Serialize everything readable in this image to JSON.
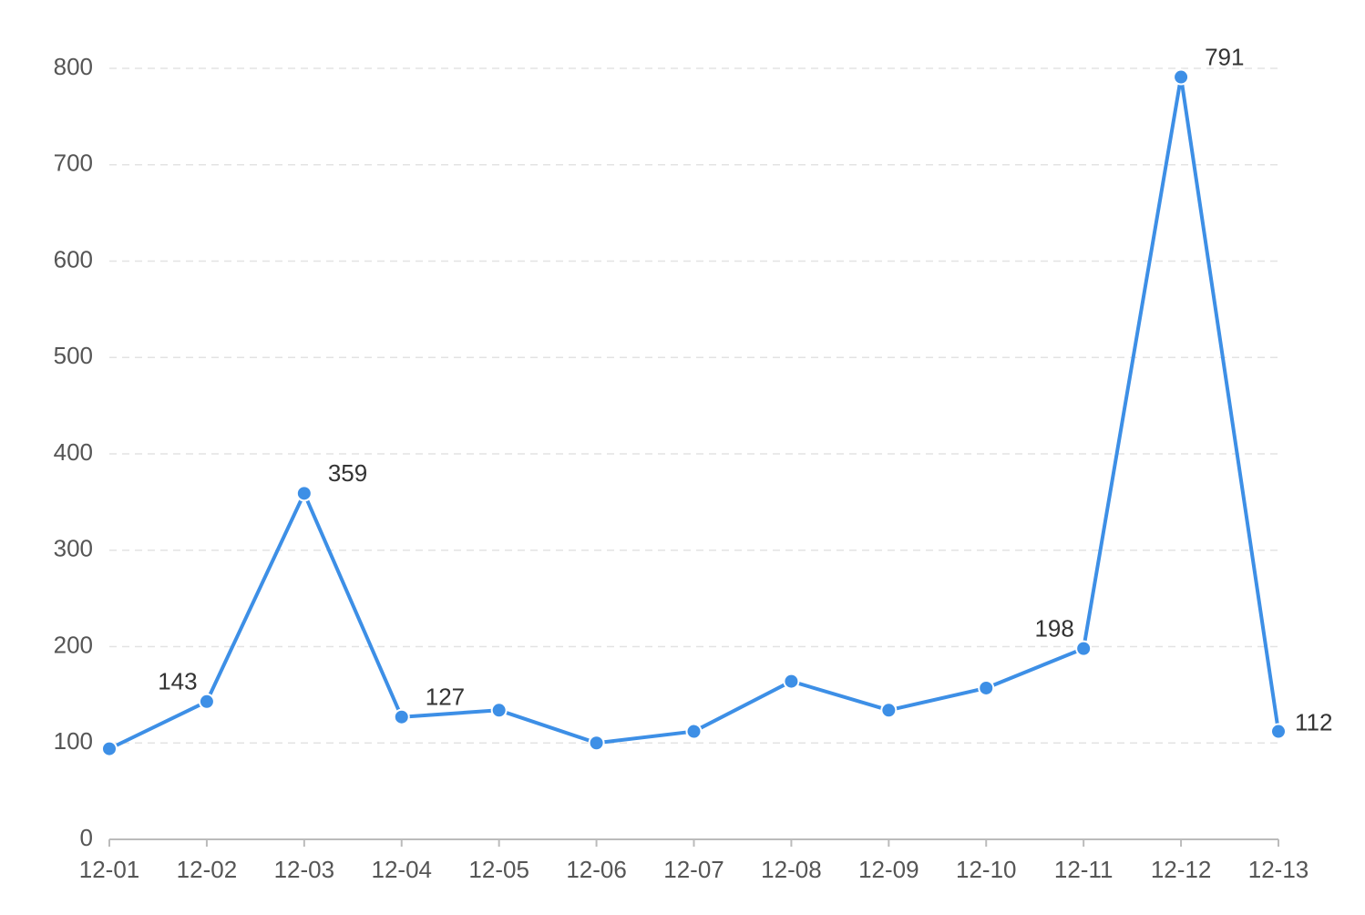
{
  "chart_data": {
    "type": "line",
    "categories": [
      "12-01",
      "12-02",
      "12-03",
      "12-04",
      "12-05",
      "12-06",
      "12-07",
      "12-08",
      "12-09",
      "12-10",
      "12-11",
      "12-12",
      "12-13"
    ],
    "values": [
      94,
      143,
      359,
      127,
      134,
      100,
      112,
      164,
      134,
      157,
      198,
      791,
      112
    ],
    "value_labels": [
      null,
      "143",
      "359",
      "127",
      null,
      null,
      null,
      null,
      null,
      null,
      "198",
      "791",
      "112"
    ],
    "color": "#3d8fe6",
    "ylim": [
      0,
      800
    ],
    "yticks": [
      0,
      100,
      200,
      300,
      400,
      500,
      600,
      700,
      800
    ],
    "grid": true
  }
}
